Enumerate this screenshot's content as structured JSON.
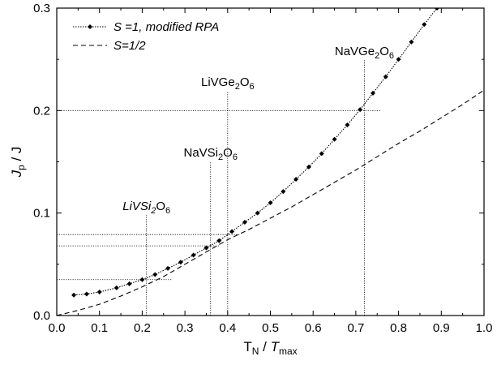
{
  "chart_data": {
    "type": "line",
    "xlabel": {
      "main": "T",
      "sub": "N",
      "sep": " / ",
      "italic": "T",
      "isub": "max"
    },
    "ylabel": {
      "italic": "J",
      "sub": "p",
      "rest": " / J"
    },
    "xlim": [
      0.0,
      1.0
    ],
    "ylim": [
      0.0,
      0.3
    ],
    "x_ticks": [
      "0.0",
      "0.1",
      "0.2",
      "0.3",
      "0.4",
      "0.5",
      "0.6",
      "0.7",
      "0.8",
      "0.9",
      "1.0"
    ],
    "y_ticks": [
      "0.0",
      "0.1",
      "0.2",
      "0.3"
    ],
    "grid": false,
    "legend_position": "top-left",
    "series": [
      {
        "name": "S =1, modified RPA",
        "style": "dotted line with diamond markers",
        "x": [
          0.04,
          0.07,
          0.1,
          0.14,
          0.17,
          0.2,
          0.23,
          0.26,
          0.29,
          0.32,
          0.35,
          0.38,
          0.41,
          0.44,
          0.47,
          0.5,
          0.53,
          0.56,
          0.59,
          0.62,
          0.65,
          0.68,
          0.71,
          0.74,
          0.77,
          0.8,
          0.83,
          0.86,
          0.89
        ],
        "y": [
          0.02,
          0.021,
          0.023,
          0.027,
          0.031,
          0.035,
          0.04,
          0.046,
          0.052,
          0.059,
          0.066,
          0.073,
          0.082,
          0.091,
          0.1,
          0.11,
          0.121,
          0.133,
          0.145,
          0.158,
          0.172,
          0.186,
          0.201,
          0.217,
          0.233,
          0.25,
          0.267,
          0.284,
          0.3
        ]
      },
      {
        "name": "S=1/2",
        "style": "dashed line",
        "x": [
          0.0,
          0.05,
          0.1,
          0.15,
          0.2,
          0.25,
          0.3,
          0.35,
          0.4,
          0.45,
          0.5,
          0.55,
          0.6,
          0.65,
          0.7,
          0.75,
          0.8,
          0.85,
          0.9,
          0.95,
          1.0
        ],
        "y": [
          0.0,
          0.005,
          0.011,
          0.019,
          0.028,
          0.038,
          0.05,
          0.062,
          0.074,
          0.084,
          0.095,
          0.106,
          0.118,
          0.13,
          0.142,
          0.155,
          0.168,
          0.18,
          0.193,
          0.206,
          0.22
        ]
      }
    ],
    "annotations": [
      {
        "text": "LiVSi",
        "sub": "2",
        "tail": "O",
        "tail_sub": "6",
        "italic": true,
        "x": 0.21,
        "y": 0.035,
        "label_y": 0.103
      },
      {
        "text": "NaVSi",
        "sub": "2",
        "tail": "O",
        "tail_sub": "6",
        "italic": false,
        "x": 0.36,
        "y": 0.068,
        "label_y": 0.155
      },
      {
        "text": "LiVGe",
        "sub": "2",
        "tail": "O",
        "tail_sub": "6",
        "italic": false,
        "x": 0.4,
        "y": 0.079,
        "label_y": 0.224
      },
      {
        "text": "NaVGe",
        "sub": "2",
        "tail": "O",
        "tail_sub": "6",
        "italic": false,
        "x": 0.72,
        "y": 0.2,
        "label_y": 0.254
      }
    ]
  }
}
